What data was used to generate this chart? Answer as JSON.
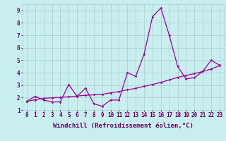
{
  "xlabel": "Windchill (Refroidissement éolien,°C)",
  "background_color": "#c8eef0",
  "line_color": "#990099",
  "grid_color": "#aacccc",
  "x_data": [
    0,
    1,
    2,
    3,
    4,
    5,
    6,
    7,
    8,
    9,
    10,
    11,
    12,
    13,
    14,
    15,
    16,
    17,
    18,
    19,
    20,
    21,
    22,
    23
  ],
  "y_jagged": [
    1.7,
    2.1,
    1.8,
    1.65,
    1.65,
    3.05,
    2.1,
    2.75,
    1.5,
    1.3,
    1.8,
    1.8,
    4.0,
    3.7,
    5.5,
    8.5,
    9.2,
    7.0,
    4.5,
    3.5,
    3.6,
    4.1,
    5.0,
    4.6
  ],
  "y_smooth": [
    1.7,
    1.82,
    1.94,
    1.98,
    2.02,
    2.06,
    2.12,
    2.18,
    2.22,
    2.26,
    2.38,
    2.48,
    2.62,
    2.74,
    2.9,
    3.05,
    3.22,
    3.42,
    3.62,
    3.78,
    3.92,
    4.1,
    4.3,
    4.55
  ],
  "xlim": [
    -0.5,
    23.5
  ],
  "ylim": [
    1.0,
    9.5
  ],
  "yticks": [
    1,
    2,
    3,
    4,
    5,
    6,
    7,
    8,
    9
  ],
  "xticks": [
    0,
    1,
    2,
    3,
    4,
    5,
    6,
    7,
    8,
    9,
    10,
    11,
    12,
    13,
    14,
    15,
    16,
    17,
    18,
    19,
    20,
    21,
    22,
    23
  ],
  "font_color": "#660066",
  "tick_font_size": 5.5,
  "label_font_size": 6.5
}
